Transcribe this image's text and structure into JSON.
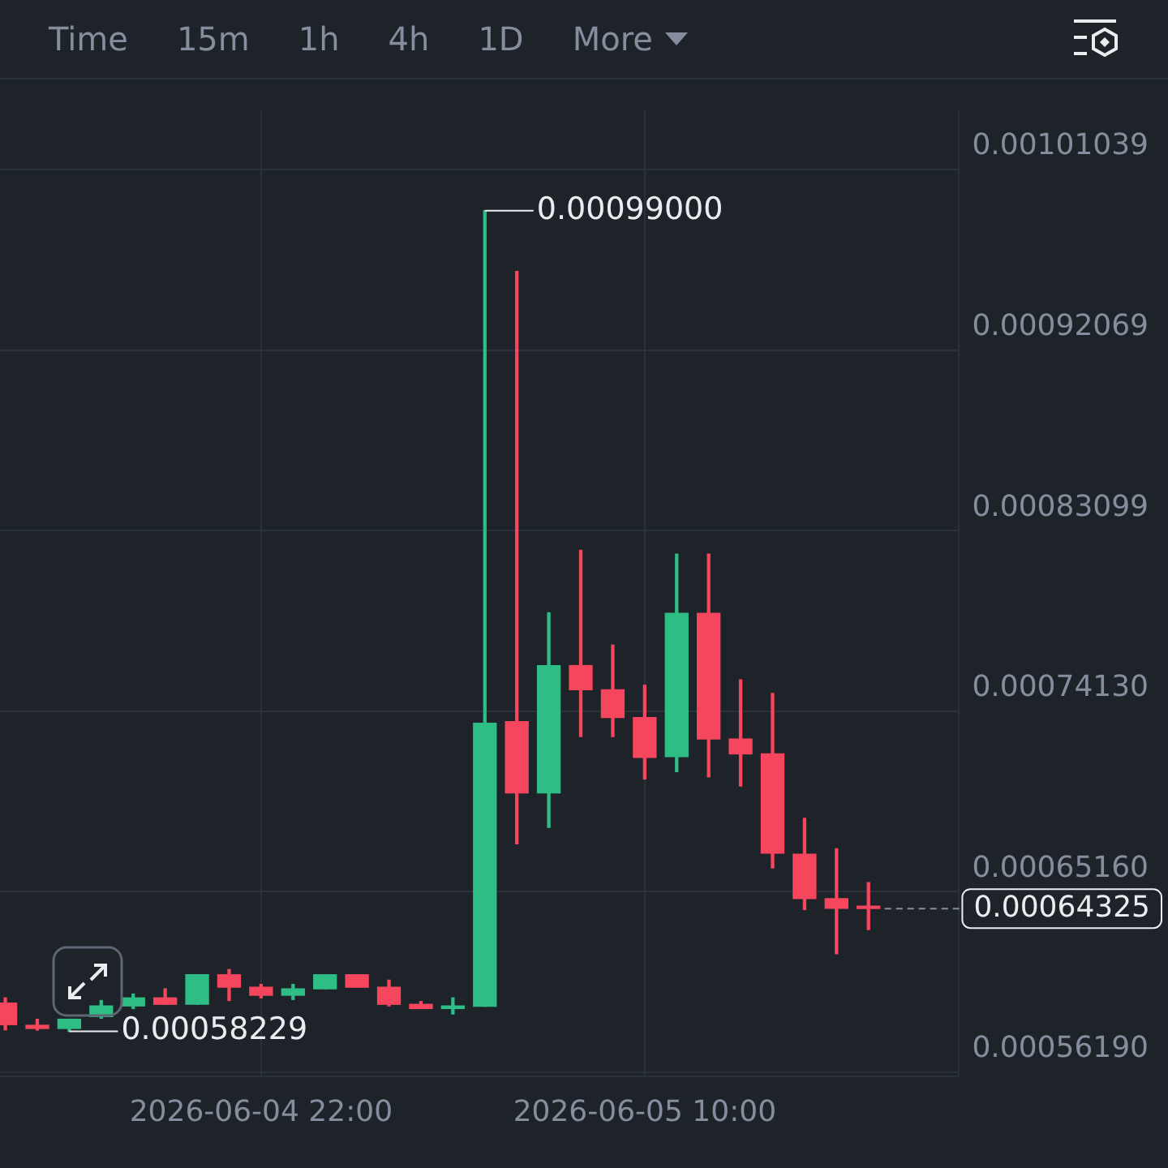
{
  "chart_data": {
    "type": "candlestick",
    "x": [
      "2026-06-04T14:00",
      "2026-06-04T15:00",
      "2026-06-04T16:00",
      "2026-06-04T17:00",
      "2026-06-04T18:00",
      "2026-06-04T19:00",
      "2026-06-04T20:00",
      "2026-06-04T21:00",
      "2026-06-04T22:00",
      "2026-06-04T23:00",
      "2026-06-05T00:00",
      "2026-06-05T01:00",
      "2026-06-05T02:00",
      "2026-06-05T03:00",
      "2026-06-05T04:00",
      "2026-06-05T05:00",
      "2026-06-05T06:00",
      "2026-06-05T07:00",
      "2026-06-05T08:00",
      "2026-06-05T09:00",
      "2026-06-05T10:00",
      "2026-06-05T11:00",
      "2026-06-05T12:00",
      "2026-06-05T13:00",
      "2026-06-05T14:00",
      "2026-06-05T15:00",
      "2026-06-05T16:00",
      "2026-06-05T17:00"
    ],
    "ohlc": [
      [
        0.0005963,
        0.0005989,
        0.000583,
        0.0005856
      ],
      [
        0.0005853,
        0.0005883,
        0.0005829,
        0.0005837
      ],
      [
        0.0005837,
        0.0005883,
        0.00058229,
        0.0005883
      ],
      [
        0.0005896,
        0.0005976,
        0.0005888,
        0.0005949
      ],
      [
        0.0005949,
        0.0006008,
        0.0005936,
        0.0005989
      ],
      [
        0.0005989,
        0.0006034,
        0.0005957,
        0.0005957
      ],
      [
        0.0005957,
        0.0006104,
        0.0005957,
        0.0006104
      ],
      [
        0.0006104,
        0.000613,
        0.0005976,
        0.0006042
      ],
      [
        0.0006042,
        0.0006056,
        0.0005989,
        0.0006002
      ],
      [
        0.0006002,
        0.0006056,
        0.0005981,
        0.0006034
      ],
      [
        0.0006034,
        0.0006104,
        0.0006034,
        0.0006104
      ],
      [
        0.0006104,
        0.0006104,
        0.0006042,
        0.0006042
      ],
      [
        0.0006042,
        0.0006077,
        0.0005949,
        0.0005957
      ],
      [
        0.0005957,
        0.0005971,
        0.0005936,
        0.0005936
      ],
      [
        0.0005936,
        0.0005989,
        0.0005909,
        0.0005949
      ],
      [
        0.0005947,
        0.00099,
        0.0005947,
        0.0007353
      ],
      [
        0.0007361,
        0.0009598,
        0.0006754,
        0.0007007
      ],
      [
        0.0007007,
        0.0007902,
        0.0006836,
        0.000764
      ],
      [
        0.000764,
        0.0008213,
        0.0007287,
        0.000752
      ],
      [
        0.000752,
        0.0007742,
        0.0007287,
        0.0007382
      ],
      [
        0.0007382,
        0.0007542,
        0.0007076,
        0.0007183
      ],
      [
        0.0007187,
        0.0008194,
        0.0007113,
        0.0007899
      ],
      [
        0.0007899,
        0.0008194,
        0.0007087,
        0.0007275
      ],
      [
        0.0007275,
        0.0007569,
        0.0007041,
        0.0007201
      ],
      [
        0.0007201,
        0.0007502,
        0.0006634,
        0.0006708
      ],
      [
        0.0006703,
        0.0006881,
        0.0006428,
        0.0006482
      ],
      [
        0.0006482,
        0.000673,
        0.0006208,
        0.0006434
      ],
      [
        0.0006438,
        0.0006562,
        0.0006328,
        0.00064325
      ]
    ],
    "colors": [
      "#f6465d",
      "#f6465d",
      "#2ebd85",
      "#2ebd85",
      "#2ebd85",
      "#f6465d",
      "#2ebd85",
      "#f6465d",
      "#f6465d",
      "#2ebd85",
      "#2ebd85",
      "#f6465d",
      "#f6465d",
      "#f6465d",
      "#2ebd85",
      "#2ebd85",
      "#f6465d",
      "#2ebd85",
      "#f6465d",
      "#f6465d",
      "#f6465d",
      "#2ebd85",
      "#f6465d",
      "#f6465d",
      "#f6465d",
      "#f6465d",
      "#f6465d",
      "#f6465d"
    ],
    "xlim": [
      "2026-06-04T13:50",
      "2026-06-05T19:50"
    ],
    "xticks": [
      {
        "value": "2026-06-04T22:00",
        "label": "2026-06-04 22:00"
      },
      {
        "value": "2026-06-05T10:00",
        "label": "2026-06-05 10:00"
      }
    ],
    "ylim": [
      0.00056,
      0.00104
    ],
    "yticks": [
      {
        "value": 0.0005619,
        "label": "0.00056190"
      },
      {
        "value": 0.0006516,
        "label": "0.00065160"
      },
      {
        "value": 0.0007413,
        "label": "0.00074130"
      },
      {
        "value": 0.00083099,
        "label": "0.00083099"
      },
      {
        "value": 0.00092069,
        "label": "0.00092069"
      },
      {
        "value": 0.00101039,
        "label": "0.00101039"
      }
    ],
    "grid": true,
    "legend": false,
    "ref_lines": [
      {
        "axis": "y",
        "value": 0.00064325,
        "label": "0.00064325",
        "color": "#848e9c",
        "line_style": "dashed"
      }
    ],
    "annotations": [
      "Time",
      "15m",
      "1h",
      "4h",
      "1D",
      "More",
      {
        "text": "0.00099000",
        "x": "2026-06-05T05:00",
        "y": 0.00099
      },
      {
        "text": "0.00058229",
        "x": "2026-06-04T16:00",
        "y": 0.00058229
      }
    ]
  }
}
